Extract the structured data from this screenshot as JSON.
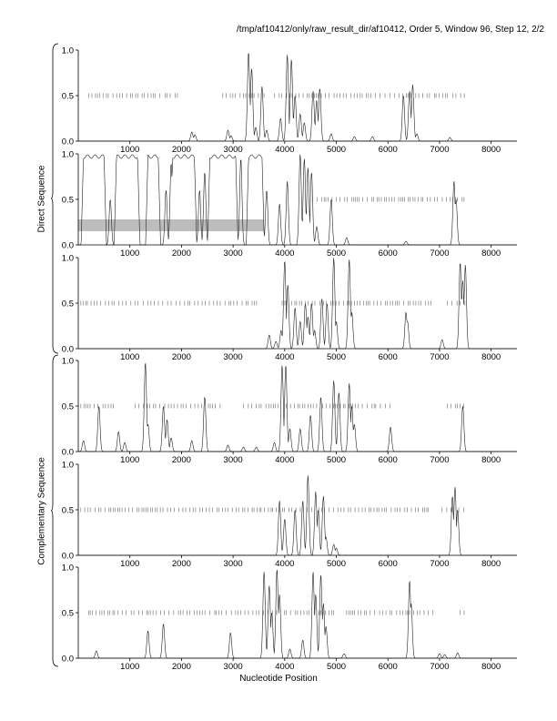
{
  "header": {
    "title": "/tmp/af10412/only/raw_result_dir/af10412, Order 5, Window 96, Step 12, 2/2"
  },
  "groups": {
    "direct": "Direct Sequence",
    "complementary": "Complementary Sequence"
  },
  "chart_data": {
    "type": "line",
    "xlabel": "Nucleotide Position",
    "xlim": [
      0,
      8500
    ],
    "ylim": [
      0,
      1
    ],
    "x_ticks": [
      1000,
      2000,
      3000,
      4000,
      5000,
      6000,
      7000,
      8000
    ],
    "x_tick_labels": [
      "1000",
      "2000",
      "3000",
      "4000",
      "5000",
      "6000",
      "7000",
      "8000"
    ],
    "y_ticks": [
      0.0,
      0.5,
      1.0
    ],
    "y_tick_labels": [
      "0.0",
      "0.5",
      "1.0"
    ],
    "panels": [
      {
        "group": "direct",
        "peaks": [
          [
            2200,
            0.1
          ],
          [
            2260,
            0.07
          ],
          [
            2900,
            0.12
          ],
          [
            2960,
            0.06
          ],
          [
            3300,
            0.98
          ],
          [
            3360,
            0.8
          ],
          [
            3440,
            0.15
          ],
          [
            3560,
            0.6
          ],
          [
            3650,
            0.12
          ],
          [
            3920,
            0.25
          ],
          [
            4050,
            0.95
          ],
          [
            4130,
            0.9
          ],
          [
            4200,
            0.5
          ],
          [
            4300,
            0.3
          ],
          [
            4380,
            0.2
          ],
          [
            4550,
            0.55
          ],
          [
            4620,
            0.45
          ],
          [
            4680,
            0.58
          ],
          [
            4900,
            0.08
          ],
          [
            5350,
            0.05
          ],
          [
            5700,
            0.05
          ],
          [
            6300,
            0.5
          ],
          [
            6420,
            0.55
          ],
          [
            6480,
            0.62
          ],
          [
            6560,
            0.08
          ],
          [
            7200,
            0.04
          ]
        ],
        "ticks": [
          [
            200,
            1950
          ],
          [
            2800,
            3600
          ],
          [
            3800,
            7500
          ]
        ],
        "band": null
      },
      {
        "group": "direct",
        "plateaus": [
          [
            100,
            500
          ],
          [
            740,
            1150
          ],
          [
            1350,
            1550
          ],
          [
            1830,
            2250
          ],
          [
            2550,
            3050
          ],
          [
            3300,
            3560
          ]
        ],
        "peaks": [
          [
            620,
            0.5
          ],
          [
            1700,
            0.6
          ],
          [
            1800,
            0.9
          ],
          [
            2350,
            0.6
          ],
          [
            2450,
            0.8
          ],
          [
            3150,
            0.95
          ],
          [
            3650,
            0.6
          ],
          [
            3900,
            0.45
          ],
          [
            4050,
            0.7
          ],
          [
            4300,
            1.0
          ],
          [
            4380,
            0.95
          ],
          [
            4450,
            0.85
          ],
          [
            4520,
            0.8
          ],
          [
            4620,
            0.2
          ],
          [
            4900,
            0.5
          ],
          [
            5200,
            0.08
          ],
          [
            6350,
            0.04
          ],
          [
            7280,
            0.7
          ],
          [
            7320,
            0.5
          ]
        ],
        "ticks": [
          [
            4500,
            7500
          ]
        ],
        "band": [
          [
            0,
            3600
          ],
          [
            0.15,
            0.28
          ]
        ]
      },
      {
        "group": "direct",
        "peaks": [
          [
            3700,
            0.15
          ],
          [
            3830,
            0.08
          ],
          [
            3930,
            0.2
          ],
          [
            4000,
            0.97
          ],
          [
            4060,
            0.7
          ],
          [
            4200,
            0.45
          ],
          [
            4300,
            0.3
          ],
          [
            4400,
            0.5
          ],
          [
            4450,
            0.35
          ],
          [
            4520,
            0.5
          ],
          [
            4580,
            0.2
          ],
          [
            4720,
            0.55
          ],
          [
            4820,
            0.5
          ],
          [
            4950,
            1.0
          ],
          [
            5000,
            0.3
          ],
          [
            5250,
            0.98
          ],
          [
            5300,
            0.4
          ],
          [
            6350,
            0.4
          ],
          [
            6380,
            0.3
          ],
          [
            7050,
            0.1
          ],
          [
            7400,
            0.95
          ],
          [
            7450,
            0.75
          ],
          [
            7500,
            0.92
          ]
        ],
        "ticks": [
          [
            50,
            3500
          ],
          [
            3950,
            6850
          ],
          [
            7150,
            7500
          ]
        ],
        "band": null
      },
      {
        "group": "complementary",
        "peaks": [
          [
            100,
            0.12
          ],
          [
            400,
            0.5
          ],
          [
            780,
            0.22
          ],
          [
            900,
            0.1
          ],
          [
            1300,
            0.98
          ],
          [
            1350,
            0.3
          ],
          [
            1650,
            0.5
          ],
          [
            1720,
            0.35
          ],
          [
            1800,
            0.15
          ],
          [
            2200,
            0.12
          ],
          [
            2450,
            0.6
          ],
          [
            2900,
            0.07
          ],
          [
            3200,
            0.05
          ],
          [
            3450,
            0.05
          ],
          [
            3800,
            0.1
          ],
          [
            3950,
            0.95
          ],
          [
            4020,
            0.95
          ],
          [
            4100,
            0.25
          ],
          [
            4300,
            0.25
          ],
          [
            4500,
            0.4
          ],
          [
            4700,
            0.6
          ],
          [
            4950,
            0.78
          ],
          [
            5050,
            0.65
          ],
          [
            5250,
            0.75
          ],
          [
            5300,
            0.5
          ],
          [
            5350,
            0.3
          ],
          [
            6050,
            0.27
          ],
          [
            7450,
            0.5
          ]
        ],
        "ticks": [
          [
            50,
            700
          ],
          [
            1100,
            2800
          ],
          [
            3200,
            6100
          ],
          [
            7150,
            7500
          ]
        ],
        "band": null
      },
      {
        "group": "complementary",
        "peaks": [
          [
            3900,
            0.6
          ],
          [
            4000,
            0.4
          ],
          [
            4200,
            0.5
          ],
          [
            4350,
            0.6
          ],
          [
            4450,
            0.88
          ],
          [
            4600,
            0.7
          ],
          [
            4650,
            0.5
          ],
          [
            4750,
            0.65
          ],
          [
            4800,
            0.2
          ],
          [
            4950,
            0.12
          ],
          [
            5000,
            0.08
          ],
          [
            7250,
            0.65
          ],
          [
            7300,
            0.75
          ],
          [
            7350,
            0.5
          ]
        ],
        "ticks": [
          [
            50,
            6800
          ],
          [
            7050,
            7500
          ]
        ],
        "band": null
      },
      {
        "group": "complementary",
        "peaks": [
          [
            350,
            0.08
          ],
          [
            1350,
            0.3
          ],
          [
            1650,
            0.38
          ],
          [
            2950,
            0.28
          ],
          [
            3600,
            0.95
          ],
          [
            3700,
            0.8
          ],
          [
            3750,
            0.5
          ],
          [
            3850,
            0.98
          ],
          [
            3900,
            0.7
          ],
          [
            4100,
            0.1
          ],
          [
            4350,
            0.2
          ],
          [
            4550,
            0.95
          ],
          [
            4600,
            0.7
          ],
          [
            4700,
            0.92
          ],
          [
            4750,
            0.6
          ],
          [
            4800,
            0.35
          ],
          [
            5150,
            0.05
          ],
          [
            6420,
            0.85
          ],
          [
            6450,
            0.6
          ],
          [
            7000,
            0.05
          ],
          [
            7100,
            0.04
          ],
          [
            7350,
            0.06
          ]
        ],
        "ticks": [
          [
            200,
            5000
          ],
          [
            5200,
            6900
          ],
          [
            7400,
            7500
          ]
        ],
        "band": null
      }
    ]
  }
}
